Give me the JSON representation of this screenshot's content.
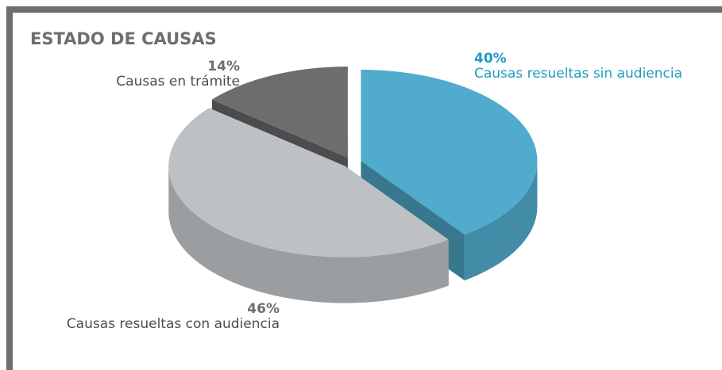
{
  "chart_data": {
    "type": "pie3d",
    "title": "ESTADO DE CAUSAS",
    "categories": [
      "Causas resueltas sin audiencia",
      "Causas resueltas con audiencia",
      "Causas en trámite"
    ],
    "values": [
      40,
      46,
      14
    ],
    "value_labels": [
      "40%",
      "46%",
      "14%"
    ],
    "colors": [
      "#50abcc",
      "#bdc1c3",
      "#6c6d6f"
    ]
  }
}
